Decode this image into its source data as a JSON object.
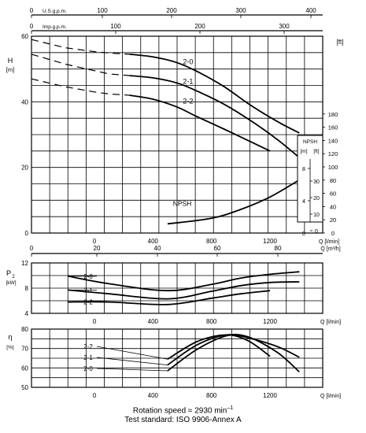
{
  "chart_data": [
    {
      "type": "line",
      "title": "",
      "xlabel": "Q [l/min]",
      "ylabel": "H [m]",
      "xlim": [
        -430,
        1560
      ],
      "ylim": [
        0,
        60
      ],
      "x_ticks": [
        0,
        400,
        800,
        1200
      ],
      "x_tick_labels": [
        "0",
        "400",
        "800",
        "1200"
      ],
      "y_ticks": [
        0,
        20,
        40,
        60
      ],
      "y_tick_labels": [
        "0",
        "20",
        "40",
        "60"
      ],
      "grid": true,
      "secondary_axes": {
        "top1": {
          "label": "U.S.g.p.m.",
          "ticks": [
            "0",
            "100",
            "200",
            "300",
            "400"
          ]
        },
        "top2": {
          "label": "Imp.g.p.m.",
          "ticks": [
            "0",
            "100",
            "200",
            "300"
          ]
        },
        "bottom": {
          "label": "Q [m³/h]",
          "ticks": [
            "0",
            "20",
            "40",
            "60",
            "80"
          ]
        },
        "right": {
          "label": "[ft]",
          "ticks": [
            "0",
            "20",
            "40",
            "60",
            "80",
            "100",
            "120",
            "140",
            "160",
            "180"
          ]
        }
      },
      "series": [
        {
          "name": "2-0",
          "x": [
            -430,
            -200,
            0,
            100,
            240,
            400,
            560,
            700,
            880,
            1060,
            1250,
            1400
          ],
          "y": [
            59,
            56.5,
            55.3,
            54.9,
            54.5,
            53.7,
            52,
            49.3,
            44.8,
            39.2,
            34,
            30.5
          ],
          "solid_from": 240
        },
        {
          "name": "2-1",
          "x": [
            -430,
            -200,
            0,
            100,
            240,
            400,
            560,
            700,
            880,
            1060,
            1250,
            1400
          ],
          "y": [
            54.5,
            51.5,
            49.5,
            48.5,
            48,
            47.3,
            45.8,
            43.3,
            39.4,
            34.5,
            28.5,
            23
          ],
          "solid_from": 240
        },
        {
          "name": "2-2",
          "x": [
            -430,
            -200,
            0,
            100,
            240,
            400,
            560,
            700,
            880,
            1060,
            1200
          ],
          "y": [
            47,
            44.6,
            43,
            42.4,
            42,
            40.8,
            38.5,
            35.5,
            31.8,
            28,
            25
          ],
          "solid_from": 240
        },
        {
          "name": "NPSH",
          "x": [
            500,
            800,
            1000,
            1200,
            1400
          ],
          "y": [
            2.8,
            4.5,
            7.2,
            11,
            16.2
          ]
        }
      ],
      "annotations": [
        "2-0",
        "2-1",
        "2-2",
        "NPSH"
      ],
      "npsh_box": {
        "header": "NPSH",
        "units": [
          "[m]",
          "[ft]"
        ],
        "m_ticks": [
          "8",
          "4",
          "0"
        ],
        "ft_ticks": [
          "30",
          "20",
          "10",
          "0"
        ]
      }
    },
    {
      "type": "line",
      "title": "",
      "xlabel": "Q [l/min]",
      "ylabel": "P₂ [kW]",
      "xlim": [
        -430,
        1560
      ],
      "ylim": [
        4,
        12
      ],
      "x_ticks": [
        0,
        400,
        800,
        1200
      ],
      "x_tick_labels": [
        "0",
        "400",
        "800",
        "1200"
      ],
      "y_ticks": [
        4,
        8,
        12
      ],
      "y_tick_labels": [
        "4",
        "8",
        "12"
      ],
      "grid": true,
      "series": [
        {
          "name": "2-0",
          "x": [
            -180,
            100,
            500,
            800,
            1000,
            1200,
            1400
          ],
          "y": [
            9.9,
            8.7,
            7.6,
            8.6,
            9.6,
            10.2,
            10.6
          ]
        },
        {
          "name": "2-1",
          "x": [
            -180,
            100,
            500,
            800,
            1000,
            1200,
            1400
          ],
          "y": [
            7.7,
            7.1,
            6.3,
            7.5,
            8.4,
            8.9,
            9.0
          ]
        },
        {
          "name": "2-2",
          "x": [
            -180,
            100,
            500,
            800,
            1000,
            1200
          ],
          "y": [
            5.8,
            5.8,
            5.4,
            6.4,
            7.1,
            7.6
          ]
        }
      ]
    },
    {
      "type": "line",
      "title": "",
      "xlabel": "Q [l/min]",
      "ylabel": "η [%]",
      "xlim": [
        -430,
        1560
      ],
      "ylim": [
        50,
        80
      ],
      "x_ticks": [
        0,
        400,
        800,
        1200
      ],
      "x_tick_labels": [
        "0",
        "400",
        "800",
        "1200"
      ],
      "y_ticks": [
        50,
        60,
        70,
        80
      ],
      "y_tick_labels": [
        "50",
        "60",
        "70",
        "80"
      ],
      "grid": true,
      "series": [
        {
          "name": "2-0",
          "x": [
            500,
            700,
            900,
            1050,
            1250,
            1400
          ],
          "y": [
            58.5,
            69.5,
            76.5,
            76,
            68,
            58
          ]
        },
        {
          "name": "2-1",
          "x": [
            500,
            700,
            900,
            1050,
            1250,
            1400
          ],
          "y": [
            61.5,
            71.8,
            77,
            75.5,
            71,
            65.5
          ]
        },
        {
          "name": "2-2",
          "x": [
            500,
            700,
            900,
            1050,
            1200
          ],
          "y": [
            64.5,
            73.5,
            77,
            74,
            66
          ]
        }
      ]
    }
  ],
  "footer": {
    "line1": "Rotation speed ≈ 2930 min",
    "line1_sup": "–1",
    "line2": "Test standard: ISO 9906-Annex A"
  }
}
